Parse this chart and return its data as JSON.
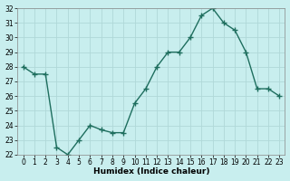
{
  "x": [
    0,
    1,
    2,
    3,
    4,
    5,
    6,
    7,
    8,
    9,
    10,
    11,
    12,
    13,
    14,
    15,
    16,
    17,
    18,
    19,
    20,
    21,
    22,
    23
  ],
  "y": [
    28.0,
    27.5,
    27.5,
    22.5,
    22.0,
    23.0,
    24.0,
    23.7,
    23.5,
    23.5,
    25.5,
    26.5,
    28.0,
    29.0,
    29.0,
    30.0,
    31.5,
    32.0,
    31.0,
    30.5,
    29.0,
    26.5,
    26.5,
    26.0
  ],
  "line_color": "#1e6e5e",
  "marker": "+",
  "marker_size": 4,
  "bg_color": "#c8eeee",
  "grid_color": "#b0d8d8",
  "xlabel": "Humidex (Indice chaleur)",
  "ylim": [
    22,
    32
  ],
  "xlim": [
    -0.5,
    23.5
  ],
  "yticks": [
    22,
    23,
    24,
    25,
    26,
    27,
    28,
    29,
    30,
    31,
    32
  ],
  "xticks": [
    0,
    1,
    2,
    3,
    4,
    5,
    6,
    7,
    8,
    9,
    10,
    11,
    12,
    13,
    14,
    15,
    16,
    17,
    18,
    19,
    20,
    21,
    22,
    23
  ],
  "tick_fontsize": 5.5,
  "xlabel_fontsize": 6.5,
  "linewidth": 1.0,
  "marker_linewidth": 1.0
}
